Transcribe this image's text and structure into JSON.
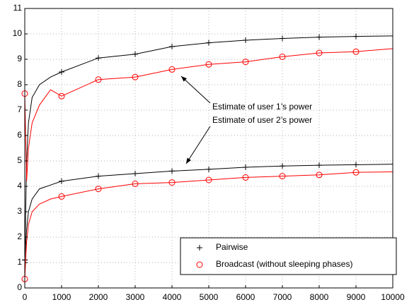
{
  "chart_data": {
    "type": "line",
    "x": [
      0,
      50,
      100,
      200,
      400,
      700,
      1000,
      2000,
      3000,
      4000,
      5000,
      6000,
      7000,
      8000,
      9000,
      10000
    ],
    "series": [
      {
        "name": "Pairwise",
        "color": "#000000",
        "marker": "plus",
        "values": [
          1.1,
          5.0,
          6.5,
          7.5,
          8.0,
          8.3,
          8.5,
          9.05,
          9.2,
          9.5,
          9.65,
          9.75,
          9.82,
          9.87,
          9.9,
          9.92
        ]
      },
      {
        "name": "Broadcast (without sleeping phases)",
        "color": "#ff0000",
        "marker": "circle",
        "values": [
          7.65,
          4.2,
          5.5,
          6.5,
          7.2,
          7.8,
          7.55,
          8.2,
          8.3,
          8.6,
          8.8,
          8.9,
          9.1,
          9.25,
          9.3,
          9.42
        ]
      },
      {
        "color": "#000000",
        "marker": "plus",
        "values": [
          1.1,
          2.3,
          3.0,
          3.5,
          3.9,
          4.05,
          4.2,
          4.4,
          4.5,
          4.6,
          4.67,
          4.75,
          4.8,
          4.83,
          4.85,
          4.87
        ]
      },
      {
        "color": "#ff0000",
        "marker": "circle",
        "values": [
          0.35,
          1.8,
          2.5,
          3.0,
          3.3,
          3.5,
          3.6,
          3.9,
          4.1,
          4.15,
          4.25,
          4.35,
          4.4,
          4.45,
          4.55,
          4.57
        ]
      }
    ],
    "annotations": [
      "Estimate of user 1’s power",
      "Estimate of user 2’s power"
    ],
    "xlim": [
      0,
      10000
    ],
    "xticks": [
      0,
      1000,
      2000,
      3000,
      4000,
      5000,
      6000,
      7000,
      8000,
      9000,
      10000
    ],
    "ylim": [
      0,
      11
    ],
    "yticks": [
      0,
      1,
      2,
      3,
      4,
      5,
      6,
      7,
      8,
      9,
      10,
      11
    ],
    "grid": true,
    "legend": "lower right"
  }
}
